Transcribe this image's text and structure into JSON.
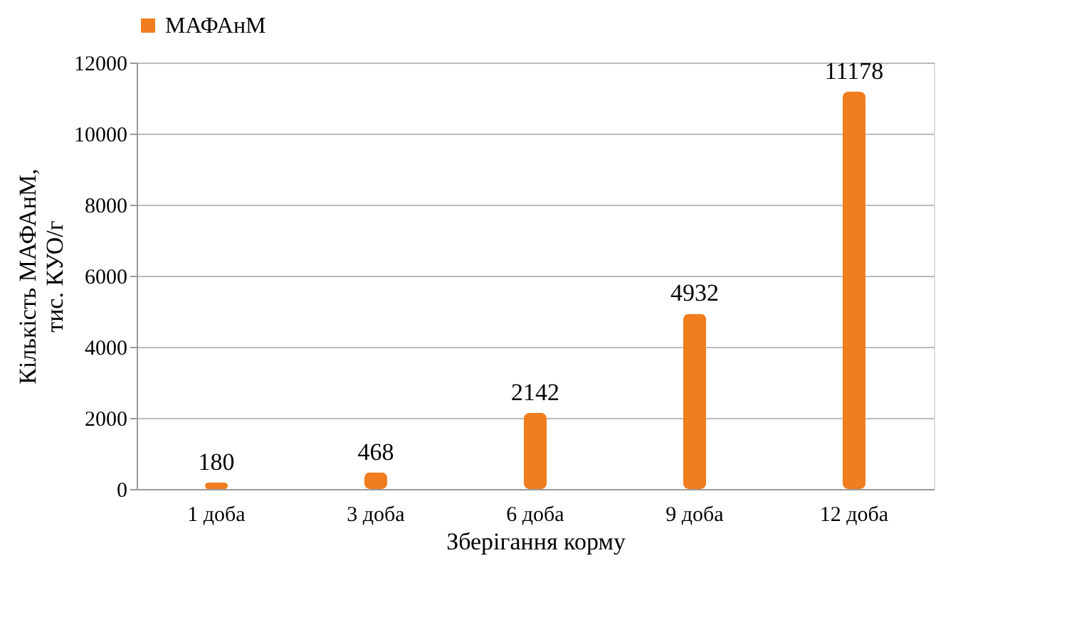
{
  "chart_data": {
    "type": "bar",
    "categories": [
      "1 доба",
      "3 доба",
      "6 доба",
      "9 доба",
      "12 доба"
    ],
    "series": [
      {
        "name": "МАФАнМ",
        "color": "#f07d1e",
        "values": [
          180,
          468,
          2142,
          4932,
          11178
        ]
      }
    ],
    "xlabel": "Зберігання корму",
    "ylabel": "Кількість МАФАнМ, тис. КУО/г",
    "ylim": [
      0,
      12000
    ],
    "yticks": [
      0,
      2000,
      4000,
      6000,
      8000,
      10000,
      12000
    ],
    "grid": "y",
    "legend": "top",
    "data_labels": true
  }
}
